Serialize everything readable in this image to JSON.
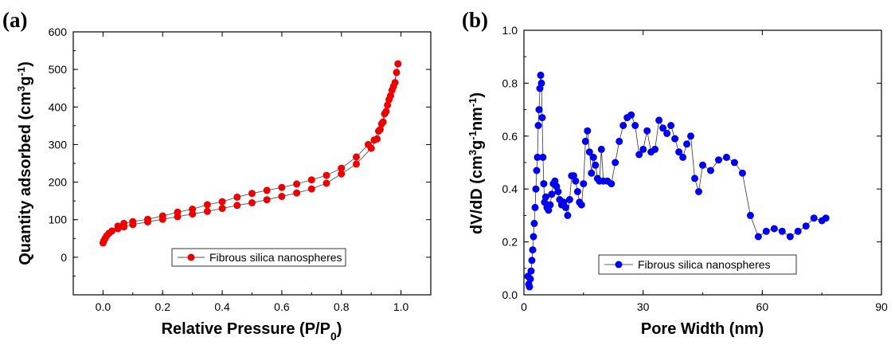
{
  "chart_data": [
    {
      "type": "scatter",
      "panel_label": "(a)",
      "xlabel": "Relative Pressure (P/P0)",
      "ylabel": "Quantity adsorbed (cm3g-1)",
      "xlim": [
        -0.1,
        1.1
      ],
      "ylim": [
        -100,
        600
      ],
      "xticks": [
        "0.0",
        "0.2",
        "0.4",
        "0.6",
        "0.8",
        "1.0"
      ],
      "yticks": [
        "0",
        "100",
        "200",
        "300",
        "400",
        "500",
        "600"
      ],
      "legend_position": "bottom-right",
      "color": "#ee0000",
      "series": [
        {
          "name": "Fibrous silica nanospheres",
          "x": [
            0.0,
            0.003,
            0.007,
            0.012,
            0.02,
            0.03,
            0.05,
            0.07,
            0.1,
            0.15,
            0.2,
            0.25,
            0.3,
            0.35,
            0.4,
            0.45,
            0.5,
            0.55,
            0.6,
            0.65,
            0.7,
            0.75,
            0.8,
            0.85,
            0.9,
            0.92,
            0.93,
            0.94,
            0.95,
            0.96,
            0.97,
            0.98,
            0.99,
            0.985,
            0.975,
            0.965,
            0.955,
            0.945,
            0.935,
            0.925,
            0.91,
            0.89,
            0.85,
            0.8,
            0.75,
            0.7,
            0.65,
            0.6,
            0.55,
            0.5,
            0.45,
            0.4,
            0.35,
            0.3,
            0.25,
            0.2,
            0.15,
            0.1,
            0.07,
            0.05
          ],
          "y": [
            38,
            44,
            50,
            57,
            64,
            70,
            76,
            81,
            87,
            94,
            101,
            108,
            115,
            122,
            130,
            138,
            145,
            153,
            162,
            171,
            182,
            197,
            222,
            248,
            290,
            315,
            340,
            360,
            388,
            420,
            445,
            465,
            515,
            492,
            455,
            430,
            405,
            382,
            355,
            336,
            312,
            300,
            267,
            237,
            218,
            206,
            195,
            186,
            178,
            170,
            160,
            148,
            140,
            128,
            120,
            110,
            101,
            95,
            90,
            83
          ]
        }
      ]
    },
    {
      "type": "line",
      "panel_label": "(b)",
      "xlabel": "Pore Width (nm)",
      "ylabel": "dV/dD (cm3g-1nm-1)",
      "xlim": [
        0,
        90
      ],
      "ylim": [
        0.0,
        1.0
      ],
      "xticks": [
        "0",
        "30",
        "60",
        "90"
      ],
      "yticks": [
        "0.0",
        "0.2",
        "0.4",
        "0.6",
        "0.8",
        "1.0"
      ],
      "legend_position": "bottom-right",
      "color": "#0000ee",
      "series": [
        {
          "name": "Fibrous silica nanospheres",
          "x": [
            1.0,
            1.2,
            1.4,
            1.6,
            1.8,
            2.0,
            2.2,
            2.4,
            2.6,
            2.8,
            3.0,
            3.2,
            3.4,
            3.6,
            3.8,
            4.0,
            4.2,
            4.4,
            4.6,
            4.8,
            5.0,
            5.2,
            5.5,
            5.8,
            6.2,
            6.6,
            7.0,
            7.4,
            7.8,
            8.2,
            8.6,
            9.0,
            9.5,
            10.0,
            10.5,
            11.0,
            11.5,
            12.0,
            12.5,
            13.0,
            13.5,
            14.0,
            14.5,
            15.0,
            15.5,
            16.0,
            16.5,
            17.0,
            17.5,
            18.0,
            18.5,
            19.0,
            19.5,
            20.0,
            21.0,
            22.0,
            23.0,
            24.0,
            25.0,
            26.0,
            27.0,
            28.0,
            29.0,
            30.0,
            31.0,
            32.0,
            33.0,
            34.0,
            35.0,
            36.0,
            37.0,
            38.0,
            39.0,
            40.0,
            41.0,
            42.0,
            43.0,
            44.0,
            45.0,
            47.0,
            49.0,
            51.0,
            53.0,
            55.0,
            57.0,
            59.0,
            61.0,
            63.0,
            65.0,
            67.0,
            69.0,
            71.0,
            73.0,
            75.0,
            76.0
          ],
          "y": [
            0.07,
            0.04,
            0.03,
            0.06,
            0.09,
            0.13,
            0.17,
            0.22,
            0.27,
            0.33,
            0.4,
            0.47,
            0.52,
            0.64,
            0.7,
            0.78,
            0.83,
            0.8,
            0.67,
            0.52,
            0.42,
            0.35,
            0.37,
            0.33,
            0.32,
            0.34,
            0.38,
            0.42,
            0.43,
            0.41,
            0.39,
            0.36,
            0.34,
            0.35,
            0.33,
            0.3,
            0.36,
            0.45,
            0.45,
            0.43,
            0.39,
            0.35,
            0.34,
            0.42,
            0.58,
            0.62,
            0.54,
            0.46,
            0.52,
            0.49,
            0.44,
            0.43,
            0.55,
            0.43,
            0.43,
            0.42,
            0.5,
            0.58,
            0.64,
            0.67,
            0.68,
            0.64,
            0.53,
            0.55,
            0.62,
            0.54,
            0.55,
            0.66,
            0.63,
            0.61,
            0.64,
            0.59,
            0.54,
            0.52,
            0.57,
            0.6,
            0.44,
            0.39,
            0.49,
            0.47,
            0.51,
            0.52,
            0.5,
            0.46,
            0.3,
            0.22,
            0.24,
            0.25,
            0.24,
            0.22,
            0.24,
            0.26,
            0.29,
            0.28,
            0.29
          ]
        }
      ]
    }
  ]
}
